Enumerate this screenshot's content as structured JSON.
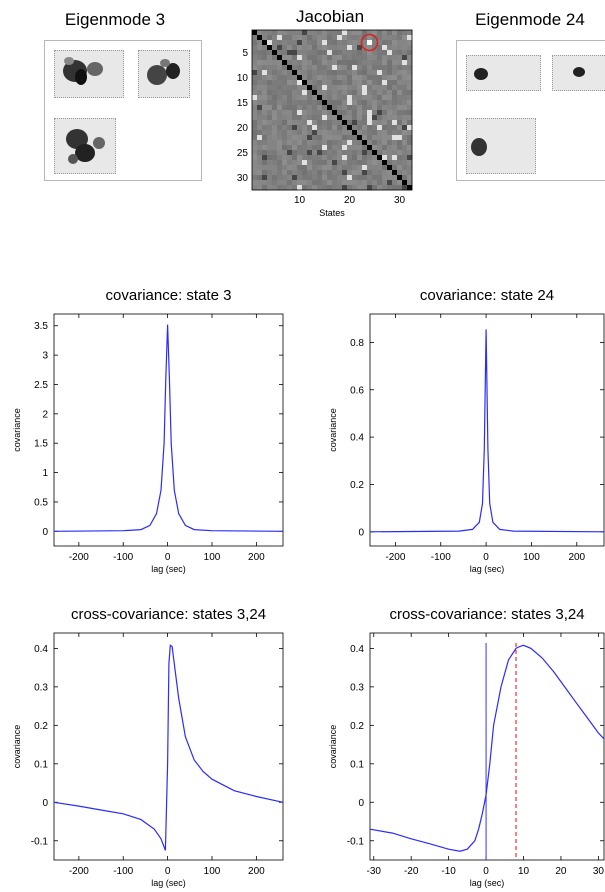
{
  "top": {
    "eigen_left_title": "Eigenmode 3",
    "eigen_right_title": "Eigenmode 24",
    "jacobian": {
      "title": "Jacobian",
      "xlabel": "States",
      "xticks": [
        "10",
        "20",
        "30"
      ],
      "yticks": [
        "5",
        "10",
        "15",
        "20",
        "25",
        "30"
      ],
      "n": 32,
      "highlight": {
        "row": 3,
        "col": 24
      }
    }
  },
  "chart_data": [
    {
      "type": "line",
      "title": "covariance: state 3",
      "xlabel": "lag (sec)",
      "ylabel": "covariance",
      "xlim": [
        -256,
        260
      ],
      "ylim": [
        -0.25,
        3.7
      ],
      "xticks": [
        -200,
        -100,
        0,
        100,
        200
      ],
      "yticks": [
        0,
        0.5,
        1,
        1.5,
        2,
        2.5,
        3,
        3.5
      ],
      "series": [
        {
          "x": [
            -256,
            -100,
            -60,
            -40,
            -25,
            -15,
            -8,
            -4,
            0,
            4,
            8,
            15,
            25,
            40,
            60,
            100,
            260
          ],
          "y": [
            0,
            0.01,
            0.03,
            0.1,
            0.3,
            0.7,
            1.5,
            2.6,
            3.52,
            2.6,
            1.5,
            0.7,
            0.3,
            0.1,
            0.03,
            0.01,
            0
          ]
        }
      ]
    },
    {
      "type": "line",
      "title": "covariance: state 24",
      "xlabel": "lag (sec)",
      "ylabel": "covariance",
      "xlim": [
        -256,
        260
      ],
      "ylim": [
        -0.06,
        0.92
      ],
      "xticks": [
        -200,
        -100,
        0,
        100,
        200
      ],
      "yticks": [
        0,
        0.2,
        0.4,
        0.6,
        0.8
      ],
      "series": [
        {
          "x": [
            -256,
            -60,
            -30,
            -15,
            -8,
            -4,
            0,
            4,
            8,
            15,
            30,
            60,
            260
          ],
          "y": [
            0,
            0.003,
            0.01,
            0.04,
            0.12,
            0.35,
            0.855,
            0.35,
            0.12,
            0.04,
            0.01,
            0.003,
            0
          ]
        }
      ]
    },
    {
      "type": "line",
      "title": "cross-covariance: states 3,24",
      "xlabel": "lag (sec)",
      "ylabel": "covariance",
      "xlim": [
        -256,
        260
      ],
      "ylim": [
        -0.15,
        0.44
      ],
      "xticks": [
        -200,
        -100,
        0,
        100,
        200
      ],
      "yticks": [
        -0.1,
        0,
        0.1,
        0.2,
        0.3,
        0.4
      ],
      "series": [
        {
          "x": [
            -256,
            -200,
            -150,
            -100,
            -60,
            -30,
            -15,
            -5,
            0,
            3,
            6,
            10,
            15,
            25,
            40,
            60,
            80,
            100,
            150,
            200,
            260
          ],
          "y": [
            0,
            -0.01,
            -0.02,
            -0.03,
            -0.045,
            -0.07,
            -0.095,
            -0.125,
            0.1,
            0.36,
            0.408,
            0.405,
            0.36,
            0.27,
            0.17,
            0.11,
            0.08,
            0.06,
            0.03,
            0.015,
            0
          ]
        }
      ]
    },
    {
      "type": "line",
      "title": "cross-covariance: states 3,24",
      "xlabel": "lag (sec)",
      "ylabel": "covariance",
      "xlim": [
        -31,
        31.5
      ],
      "ylim": [
        -0.15,
        0.44
      ],
      "xticks": [
        -30,
        -20,
        -10,
        0,
        10,
        20,
        30
      ],
      "yticks": [
        -0.1,
        0,
        0.1,
        0.2,
        0.3,
        0.4
      ],
      "series": [
        {
          "x": [
            -31,
            -25,
            -20,
            -15,
            -10,
            -7,
            -5,
            -3,
            -2,
            -1,
            0,
            1,
            2,
            4,
            6,
            8,
            9,
            10,
            12,
            15,
            18,
            21,
            24,
            27,
            30,
            31.5
          ],
          "y": [
            -0.07,
            -0.08,
            -0.095,
            -0.108,
            -0.122,
            -0.127,
            -0.122,
            -0.1,
            -0.07,
            -0.03,
            0.02,
            0.1,
            0.2,
            0.3,
            0.37,
            0.4,
            0.405,
            0.408,
            0.4,
            0.375,
            0.34,
            0.3,
            0.26,
            0.22,
            0.18,
            0.165
          ]
        }
      ],
      "vlines": [
        {
          "x": 0,
          "style": "solid",
          "color": "#3333ff"
        },
        {
          "x": 8,
          "style": "dashed",
          "color": "#ff0000"
        }
      ]
    }
  ]
}
